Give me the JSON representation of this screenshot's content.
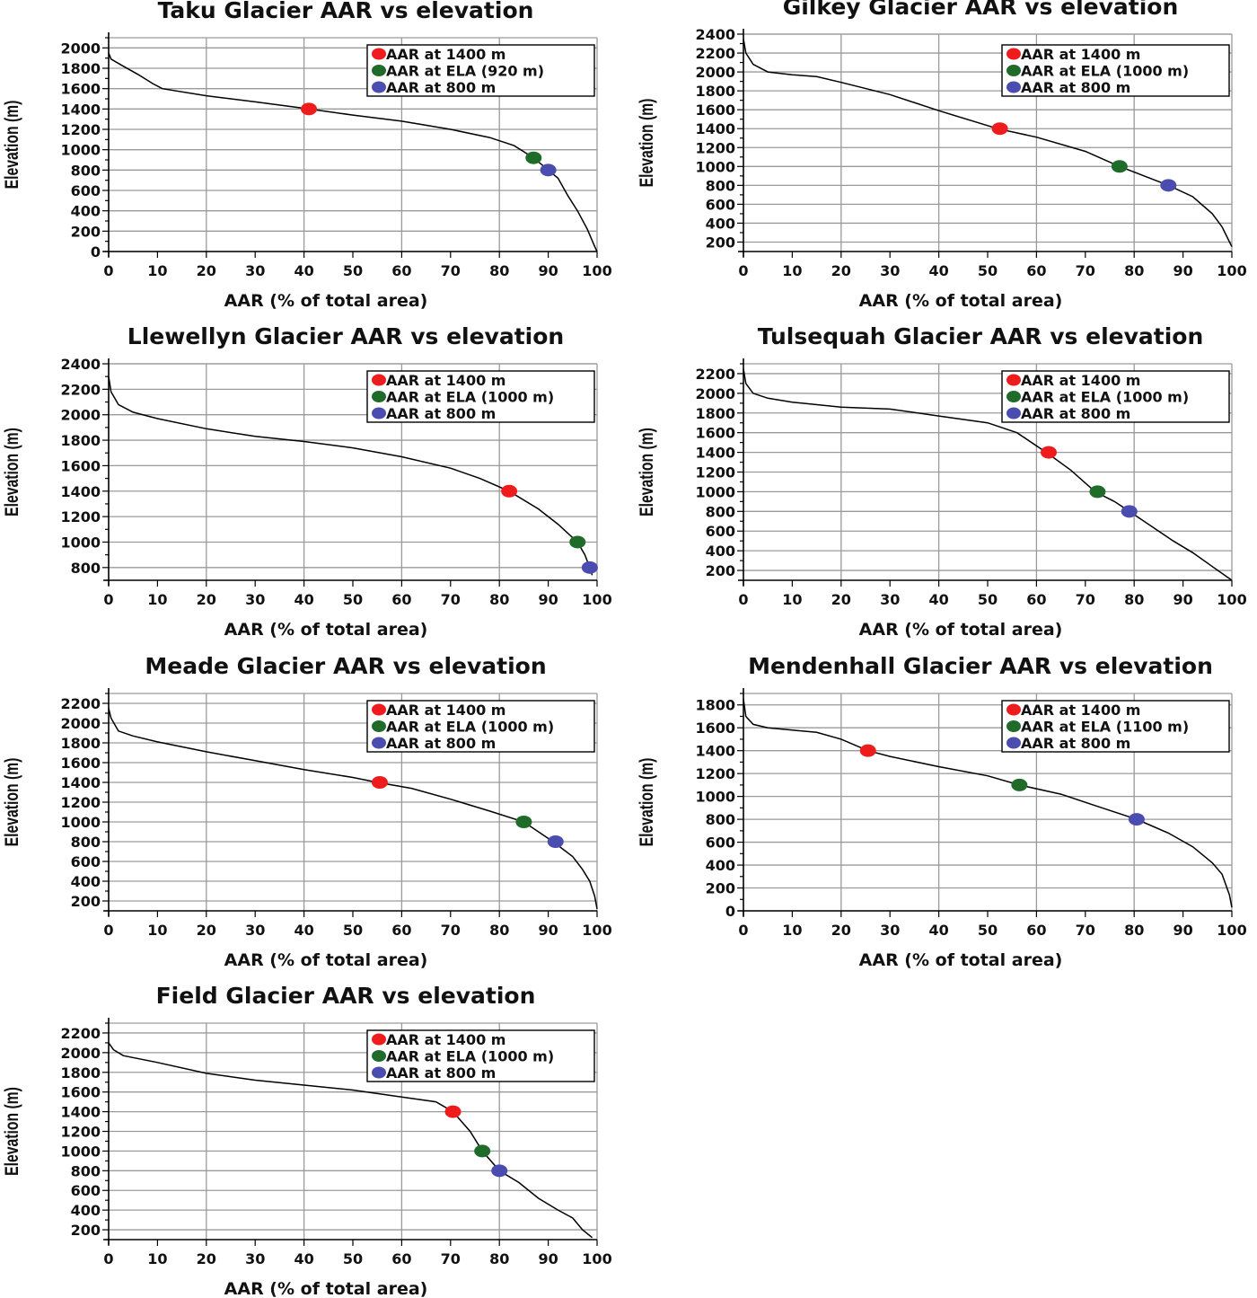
{
  "colors": {
    "aar_1400": "#ee1c1c",
    "aar_ela": "#1f6b2a",
    "aar_800": "#4a4cb0",
    "curve": "#000000",
    "grid": "#9a9a9a"
  },
  "chart_data": [
    {
      "type": "line",
      "title": "Taku Glacier AAR vs elevation",
      "xlabel": "AAR (% of total area)",
      "ylabel": "Elevation (m)",
      "xlim": [
        0,
        100
      ],
      "ylim": [
        0,
        2100
      ],
      "x_ticks": [
        "0",
        "10",
        "20",
        "30",
        "40",
        "50",
        "60",
        "70",
        "80",
        "90",
        "100"
      ],
      "y_ticks": [
        {
          "v": 0,
          "label": "0"
        },
        {
          "v": 200,
          "label": "200"
        },
        {
          "v": 400,
          "label": "400"
        },
        {
          "v": 600,
          "label": "600"
        },
        {
          "v": 800,
          "label": "800"
        },
        {
          "v": 1000,
          "label": "1000"
        },
        {
          "v": 1200,
          "label": "1200"
        },
        {
          "v": 1400,
          "label": "1400"
        },
        {
          "v": 1600,
          "label": "1600"
        },
        {
          "v": 1800,
          "label": "1800"
        },
        {
          "v": 2000,
          "label": "2000"
        }
      ],
      "grid": true,
      "legend_position": "top-right",
      "legend": [
        "AAR at 1400 m",
        "AAR at ELA (920 m)",
        "AAR at 800 m"
      ],
      "curve": [
        [
          0,
          1950
        ],
        [
          0.5,
          1890
        ],
        [
          3,
          1820
        ],
        [
          6,
          1740
        ],
        [
          9,
          1650
        ],
        [
          11,
          1600
        ],
        [
          20,
          1530
        ],
        [
          30,
          1470
        ],
        [
          41,
          1400
        ],
        [
          50,
          1340
        ],
        [
          60,
          1280
        ],
        [
          70,
          1200
        ],
        [
          78,
          1120
        ],
        [
          83,
          1040
        ],
        [
          87,
          920
        ],
        [
          90,
          800
        ],
        [
          92,
          720
        ],
        [
          94,
          550
        ],
        [
          96,
          400
        ],
        [
          98,
          220
        ],
        [
          99.5,
          50
        ],
        [
          100,
          0
        ]
      ],
      "markers": [
        {
          "x": 41,
          "y": 1400,
          "color": "aar_1400"
        },
        {
          "x": 87,
          "y": 920,
          "color": "aar_ela"
        },
        {
          "x": 90,
          "y": 800,
          "color": "aar_800"
        }
      ]
    },
    {
      "type": "line",
      "title": "Gilkey Glacier AAR vs elevation",
      "xlabel": "AAR (% of total area)",
      "ylabel": "Elevation (m)",
      "xlim": [
        0,
        100
      ],
      "ylim": [
        100,
        2400
      ],
      "x_ticks": [
        "0",
        "10",
        "20",
        "30",
        "40",
        "50",
        "60",
        "70",
        "80",
        "90",
        "100"
      ],
      "y_ticks": [
        {
          "v": 200,
          "label": "200"
        },
        {
          "v": 400,
          "label": "400"
        },
        {
          "v": 600,
          "label": "600"
        },
        {
          "v": 800,
          "label": "800"
        },
        {
          "v": 1000,
          "label": "1000"
        },
        {
          "v": 1200,
          "label": "1200"
        },
        {
          "v": 1400,
          "label": "1400"
        },
        {
          "v": 1600,
          "label": "1600"
        },
        {
          "v": 1800,
          "label": "1800"
        },
        {
          "v": 2000,
          "label": "2000"
        },
        {
          "v": 2200,
          "label": "2200"
        },
        {
          "v": 2400,
          "label": "2400"
        }
      ],
      "grid": true,
      "legend_position": "top-right",
      "legend": [
        "AAR at 1400 m",
        "AAR at ELA (1000 m)",
        "AAR at 800 m"
      ],
      "curve": [
        [
          0,
          2350
        ],
        [
          0.5,
          2200
        ],
        [
          2,
          2080
        ],
        [
          5,
          2000
        ],
        [
          10,
          1970
        ],
        [
          15,
          1950
        ],
        [
          20,
          1890
        ],
        [
          30,
          1760
        ],
        [
          40,
          1590
        ],
        [
          52,
          1400
        ],
        [
          60,
          1310
        ],
        [
          70,
          1160
        ],
        [
          77,
          1000
        ],
        [
          82,
          900
        ],
        [
          87,
          800
        ],
        [
          92,
          680
        ],
        [
          96,
          500
        ],
        [
          98,
          360
        ],
        [
          100,
          150
        ]
      ],
      "markers": [
        {
          "x": 52.5,
          "y": 1400,
          "color": "aar_1400"
        },
        {
          "x": 77,
          "y": 1000,
          "color": "aar_ela"
        },
        {
          "x": 87,
          "y": 800,
          "color": "aar_800"
        }
      ]
    },
    {
      "type": "line",
      "title": "Llewellyn Glacier AAR vs elevation",
      "xlabel": "AAR (% of total area)",
      "ylabel": "Elevation (m)",
      "xlim": [
        0,
        100
      ],
      "ylim": [
        700,
        2400
      ],
      "x_ticks": [
        "0",
        "10",
        "20",
        "30",
        "40",
        "50",
        "60",
        "70",
        "80",
        "90",
        "100"
      ],
      "y_ticks": [
        {
          "v": 800,
          "label": "800"
        },
        {
          "v": 1000,
          "label": "1000"
        },
        {
          "v": 1200,
          "label": "1200"
        },
        {
          "v": 1400,
          "label": "1400"
        },
        {
          "v": 1600,
          "label": "1600"
        },
        {
          "v": 1800,
          "label": "1800"
        },
        {
          "v": 2000,
          "label": "2000"
        },
        {
          "v": 2200,
          "label": "2200"
        },
        {
          "v": 2400,
          "label": "2400"
        }
      ],
      "grid": true,
      "legend_position": "top-right",
      "legend": [
        "AAR at 1400 m",
        "AAR at ELA (1000 m)",
        "AAR at 800 m"
      ],
      "curve": [
        [
          0,
          2300
        ],
        [
          0.5,
          2180
        ],
        [
          2,
          2080
        ],
        [
          5,
          2020
        ],
        [
          10,
          1970
        ],
        [
          20,
          1890
        ],
        [
          30,
          1830
        ],
        [
          40,
          1790
        ],
        [
          50,
          1740
        ],
        [
          60,
          1670
        ],
        [
          70,
          1580
        ],
        [
          76,
          1500
        ],
        [
          82,
          1400
        ],
        [
          88,
          1260
        ],
        [
          92,
          1140
        ],
        [
          96,
          1000
        ],
        [
          97.5,
          900
        ],
        [
          98.5,
          800
        ],
        [
          99,
          740
        ]
      ],
      "markers": [
        {
          "x": 82,
          "y": 1400,
          "color": "aar_1400"
        },
        {
          "x": 96,
          "y": 1000,
          "color": "aar_ela"
        },
        {
          "x": 98.5,
          "y": 800,
          "color": "aar_800"
        }
      ]
    },
    {
      "type": "line",
      "title": "Tulsequah Glacier AAR vs elevation",
      "xlabel": "AAR (% of total area)",
      "ylabel": "Elevation (m)",
      "xlim": [
        0,
        100
      ],
      "ylim": [
        100,
        2300
      ],
      "x_ticks": [
        "0",
        "10",
        "20",
        "30",
        "40",
        "50",
        "60",
        "70",
        "80",
        "90",
        "100"
      ],
      "y_ticks": [
        {
          "v": 200,
          "label": "200"
        },
        {
          "v": 400,
          "label": "400"
        },
        {
          "v": 600,
          "label": "600"
        },
        {
          "v": 800,
          "label": "800"
        },
        {
          "v": 1000,
          "label": "1000"
        },
        {
          "v": 1200,
          "label": "1200"
        },
        {
          "v": 1400,
          "label": "1400"
        },
        {
          "v": 1600,
          "label": "1600"
        },
        {
          "v": 1800,
          "label": "1800"
        },
        {
          "v": 2000,
          "label": "2000"
        },
        {
          "v": 2200,
          "label": "2200"
        }
      ],
      "grid": true,
      "legend_position": "top-right",
      "legend": [
        "AAR at 1400 m",
        "AAR at ELA (1000 m)",
        "AAR at 800 m"
      ],
      "curve": [
        [
          0,
          2250
        ],
        [
          0.5,
          2100
        ],
        [
          2,
          2000
        ],
        [
          5,
          1950
        ],
        [
          10,
          1910
        ],
        [
          20,
          1860
        ],
        [
          30,
          1840
        ],
        [
          40,
          1770
        ],
        [
          50,
          1700
        ],
        [
          56,
          1600
        ],
        [
          62,
          1400
        ],
        [
          67,
          1220
        ],
        [
          72,
          1000
        ],
        [
          76,
          900
        ],
        [
          79,
          800
        ],
        [
          85,
          600
        ],
        [
          88,
          500
        ],
        [
          92,
          380
        ],
        [
          96,
          240
        ],
        [
          100,
          100
        ]
      ],
      "markers": [
        {
          "x": 62.5,
          "y": 1400,
          "color": "aar_1400"
        },
        {
          "x": 72.5,
          "y": 1000,
          "color": "aar_ela"
        },
        {
          "x": 79,
          "y": 800,
          "color": "aar_800"
        }
      ]
    },
    {
      "type": "line",
      "title": "Meade Glacier AAR vs elevation",
      "xlabel": "AAR (% of total area)",
      "ylabel": "Elevation (m)",
      "xlim": [
        0,
        100
      ],
      "ylim": [
        100,
        2300
      ],
      "x_ticks": [
        "0",
        "10",
        "20",
        "30",
        "40",
        "50",
        "60",
        "70",
        "80",
        "90",
        "100"
      ],
      "y_ticks": [
        {
          "v": 200,
          "label": "200"
        },
        {
          "v": 400,
          "label": "400"
        },
        {
          "v": 600,
          "label": "600"
        },
        {
          "v": 800,
          "label": "800"
        },
        {
          "v": 1000,
          "label": "1000"
        },
        {
          "v": 1200,
          "label": "1200"
        },
        {
          "v": 1400,
          "label": "1400"
        },
        {
          "v": 1600,
          "label": "1600"
        },
        {
          "v": 1800,
          "label": "1800"
        },
        {
          "v": 2000,
          "label": "2000"
        },
        {
          "v": 2200,
          "label": "2200"
        }
      ],
      "grid": true,
      "legend_position": "top-right",
      "legend": [
        "AAR at 1400 m",
        "AAR at ELA (1000 m)",
        "AAR at 800 m"
      ],
      "curve": [
        [
          0,
          2150
        ],
        [
          0.5,
          2050
        ],
        [
          2,
          1920
        ],
        [
          5,
          1870
        ],
        [
          10,
          1810
        ],
        [
          20,
          1710
        ],
        [
          30,
          1620
        ],
        [
          40,
          1530
        ],
        [
          50,
          1450
        ],
        [
          55,
          1400
        ],
        [
          62,
          1340
        ],
        [
          70,
          1230
        ],
        [
          78,
          1110
        ],
        [
          85,
          1000
        ],
        [
          91,
          800
        ],
        [
          95,
          650
        ],
        [
          97,
          520
        ],
        [
          98.5,
          400
        ],
        [
          99.5,
          250
        ],
        [
          100,
          120
        ]
      ],
      "markers": [
        {
          "x": 55.5,
          "y": 1400,
          "color": "aar_1400"
        },
        {
          "x": 85,
          "y": 1000,
          "color": "aar_ela"
        },
        {
          "x": 91.5,
          "y": 800,
          "color": "aar_800"
        }
      ]
    },
    {
      "type": "line",
      "title": "Mendenhall Glacier AAR vs elevation",
      "xlabel": "AAR (% of total area)",
      "ylabel": "Elevation (m)",
      "xlim": [
        0,
        100
      ],
      "ylim": [
        0,
        1900
      ],
      "x_ticks": [
        "0",
        "10",
        "20",
        "30",
        "40",
        "50",
        "60",
        "70",
        "80",
        "90",
        "100"
      ],
      "y_ticks": [
        {
          "v": 0,
          "label": "0"
        },
        {
          "v": 200,
          "label": "200"
        },
        {
          "v": 400,
          "label": "400"
        },
        {
          "v": 600,
          "label": "600"
        },
        {
          "v": 800,
          "label": "800"
        },
        {
          "v": 1000,
          "label": "1000"
        },
        {
          "v": 1200,
          "label": "1200"
        },
        {
          "v": 1400,
          "label": "1400"
        },
        {
          "v": 1600,
          "label": "1600"
        },
        {
          "v": 1800,
          "label": "1800"
        }
      ],
      "grid": true,
      "legend_position": "top-right",
      "legend": [
        "AAR at 1400 m",
        "AAR at ELA (1100 m)",
        "AAR at 800 m"
      ],
      "curve": [
        [
          0,
          1850
        ],
        [
          0.5,
          1700
        ],
        [
          2,
          1630
        ],
        [
          5,
          1600
        ],
        [
          10,
          1580
        ],
        [
          15,
          1560
        ],
        [
          20,
          1500
        ],
        [
          25.5,
          1400
        ],
        [
          30,
          1350
        ],
        [
          40,
          1260
        ],
        [
          50,
          1180
        ],
        [
          56.5,
          1100
        ],
        [
          65,
          1020
        ],
        [
          72,
          920
        ],
        [
          80.5,
          800
        ],
        [
          87,
          680
        ],
        [
          92,
          560
        ],
        [
          96,
          420
        ],
        [
          98,
          320
        ],
        [
          99.5,
          140
        ],
        [
          100,
          30
        ]
      ],
      "markers": [
        {
          "x": 25.5,
          "y": 1400,
          "color": "aar_1400"
        },
        {
          "x": 56.5,
          "y": 1100,
          "color": "aar_ela"
        },
        {
          "x": 80.5,
          "y": 800,
          "color": "aar_800"
        }
      ]
    },
    {
      "type": "line",
      "title": "Field Glacier AAR vs elevation",
      "xlabel": "AAR (% of total area)",
      "ylabel": "Elevation (m)",
      "xlim": [
        0,
        100
      ],
      "ylim": [
        100,
        2300
      ],
      "x_ticks": [
        "0",
        "10",
        "20",
        "30",
        "40",
        "50",
        "60",
        "70",
        "80",
        "90",
        "100"
      ],
      "y_ticks": [
        {
          "v": 200,
          "label": "200"
        },
        {
          "v": 400,
          "label": "400"
        },
        {
          "v": 600,
          "label": "600"
        },
        {
          "v": 800,
          "label": "800"
        },
        {
          "v": 1000,
          "label": "1000"
        },
        {
          "v": 1200,
          "label": "1200"
        },
        {
          "v": 1400,
          "label": "1400"
        },
        {
          "v": 1600,
          "label": "1600"
        },
        {
          "v": 1800,
          "label": "1800"
        },
        {
          "v": 2000,
          "label": "2000"
        },
        {
          "v": 2200,
          "label": "2200"
        }
      ],
      "grid": true,
      "legend_position": "top-right",
      "legend": [
        "AAR at 1400 m",
        "AAR at ELA (1000 m)",
        "AAR at 800 m"
      ],
      "curve": [
        [
          0,
          2100
        ],
        [
          1,
          2030
        ],
        [
          3,
          1970
        ],
        [
          10,
          1900
        ],
        [
          20,
          1790
        ],
        [
          30,
          1720
        ],
        [
          40,
          1670
        ],
        [
          50,
          1620
        ],
        [
          60,
          1550
        ],
        [
          67,
          1500
        ],
        [
          70.5,
          1400
        ],
        [
          74,
          1200
        ],
        [
          76.5,
          1000
        ],
        [
          80,
          800
        ],
        [
          84,
          680
        ],
        [
          88,
          520
        ],
        [
          92,
          400
        ],
        [
          95,
          320
        ],
        [
          97,
          200
        ],
        [
          99,
          120
        ]
      ],
      "markers": [
        {
          "x": 70.5,
          "y": 1400,
          "color": "aar_1400"
        },
        {
          "x": 76.5,
          "y": 1000,
          "color": "aar_ela"
        },
        {
          "x": 80,
          "y": 800,
          "color": "aar_800"
        }
      ]
    }
  ]
}
